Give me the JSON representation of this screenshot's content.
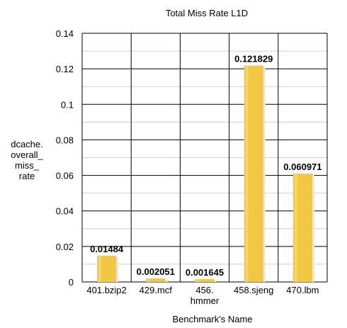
{
  "chart_data": {
    "type": "bar",
    "title": "Total Miss Rate L1D",
    "xlabel": "Benchmark's Name",
    "ylabel": [
      "dcache.",
      "overall_",
      "miss_",
      "rate"
    ],
    "categories": [
      [
        "401.bzip2"
      ],
      [
        "429.mcf"
      ],
      [
        "456.",
        "hmmer"
      ],
      [
        "458.sjeng"
      ],
      [
        "470.lbm"
      ]
    ],
    "values": [
      0.01484,
      0.002051,
      0.001645,
      0.121829,
      0.060971
    ],
    "data_labels": [
      "0.01484",
      "0.002051",
      "0.001645",
      "0.121829",
      "0.060971"
    ],
    "ylim": [
      0,
      0.14
    ],
    "yticks": [
      0,
      0.02,
      0.04,
      0.06,
      0.08,
      0.1,
      0.12,
      0.14
    ],
    "ytick_labels": [
      "0",
      "0.02",
      "0.04",
      "0.06",
      "0.08",
      "0.1",
      "0.12",
      "0.14"
    ],
    "grid": true,
    "legend": "none",
    "bar_color": "#f2c744",
    "bar_highlight": "#f7d86a"
  }
}
